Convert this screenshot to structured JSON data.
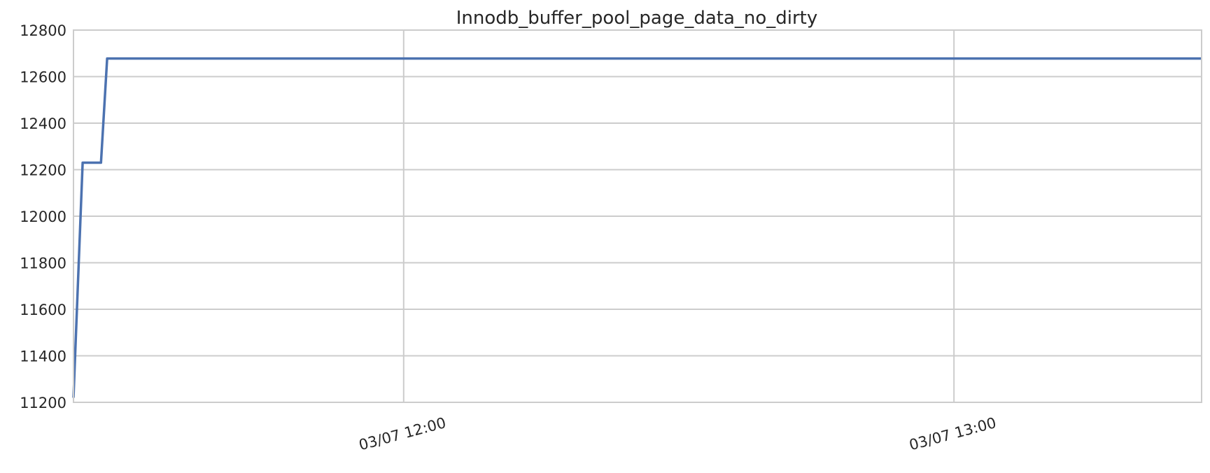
{
  "chart_data": {
    "type": "line",
    "title": "Innodb_buffer_pool_page_data_no_dirty",
    "xlabel": "",
    "ylabel": "",
    "x_axis_type": "time",
    "xlim": [
      "2024-03-07 11:24",
      "2024-03-07 13:27"
    ],
    "ylim": [
      11200,
      12800
    ],
    "y_ticks": [
      11200,
      11400,
      11600,
      11800,
      12000,
      12200,
      12400,
      12600,
      12800
    ],
    "x_ticks": [
      {
        "value": "2024-03-07 12:00",
        "label": "03/07 12:00"
      },
      {
        "value": "2024-03-07 13:00",
        "label": "03/07 13:00"
      }
    ],
    "grid": true,
    "colors": {
      "line": "#4c72b0",
      "grid": "#cccccc",
      "text": "#262626"
    },
    "series": [
      {
        "x": [
          "2024-03-07 11:24",
          "2024-03-07 11:25",
          "2024-03-07 11:26",
          "2024-03-07 11:27",
          "2024-03-07 11:27:40",
          "2024-03-07 13:27"
        ],
        "values": [
          11220,
          12230,
          12230,
          12230,
          12678,
          12678
        ]
      }
    ]
  }
}
